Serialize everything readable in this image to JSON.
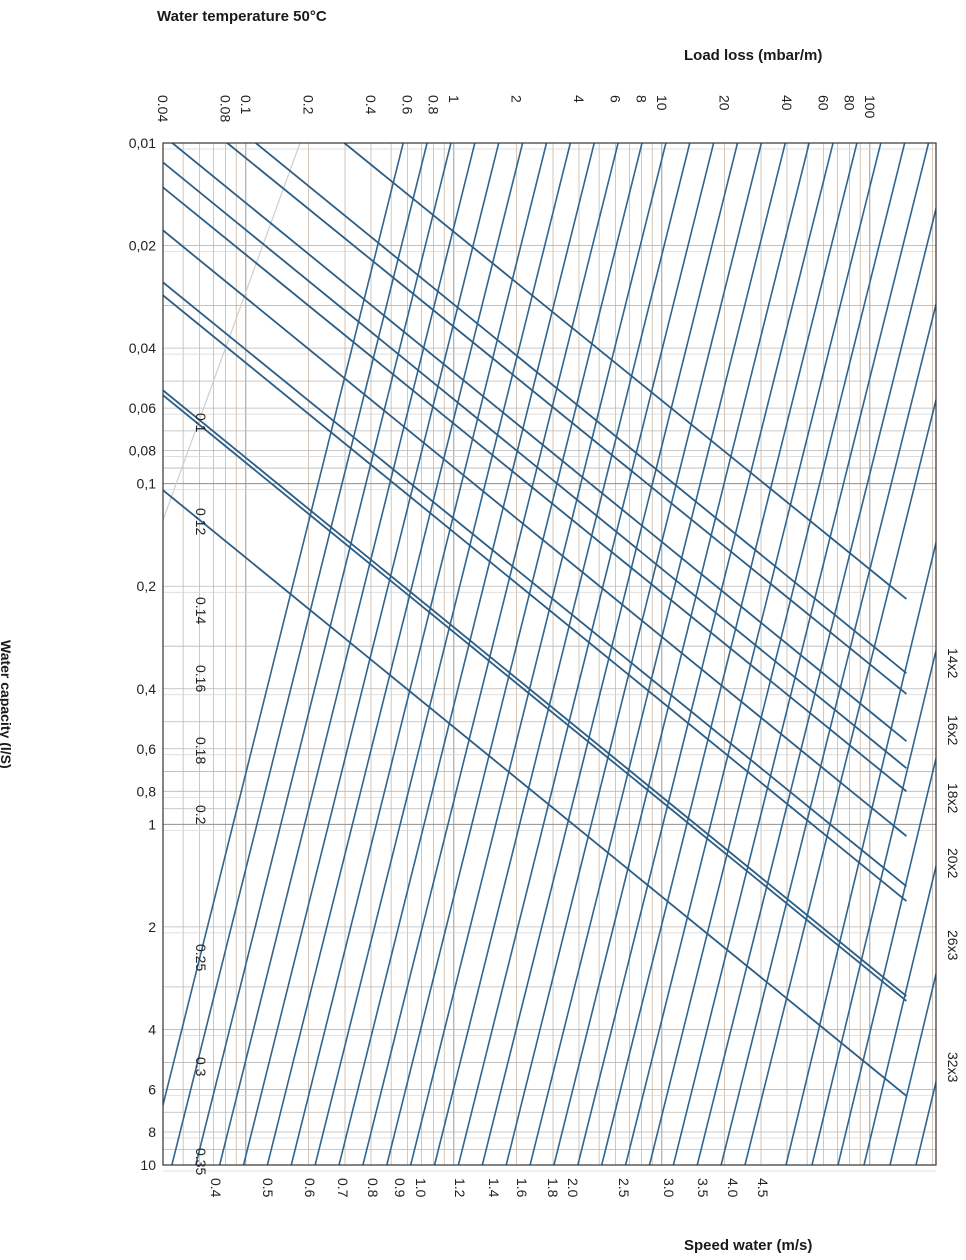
{
  "chart_data": {
    "type": "line",
    "title": "Water temperature 50°C",
    "xlabel": "Load loss (mbar/m)",
    "ylabel": "Water capacity (l/S)",
    "secondary_label": "Speed water (m/s)",
    "x_scale": "log",
    "y_scale": "log",
    "xlim": [
      0.04,
      200
    ],
    "ylim": [
      0.01,
      10
    ],
    "y_inverted": true,
    "grid": true,
    "x_ticks": [
      "0.04",
      "0.08",
      "0.1",
      "0.2",
      "0.4",
      "0.6",
      "0.8",
      "1",
      "2",
      "4",
      "6",
      "8",
      "10",
      "20",
      "40",
      "60",
      "80",
      "100"
    ],
    "y_ticks": [
      "0,01",
      "0,02",
      "0,04",
      "0,06",
      "0,08",
      "0,1",
      "0,2",
      "0,4",
      "0,6",
      "0,8",
      "1",
      "2",
      "4",
      "6",
      "8",
      "10"
    ],
    "speed_labels_bottom": [
      "0.4",
      "0.5",
      "0.6",
      "0.7",
      "0.8",
      "0.9",
      "1.0",
      "1.2",
      "1.4",
      "1.6",
      "1.8",
      "2.0",
      "2.5",
      "3.0",
      "3.5",
      "4.0",
      "4.5"
    ],
    "speed_labels_left": [
      "0.1",
      "0.12",
      "0.14",
      "0.16",
      "0.18",
      "0.2",
      "0.25",
      "0.3",
      "0.35"
    ],
    "pipe_labels": [
      "14x2",
      "16x2",
      "18x2",
      "20x2",
      "26x3",
      "32x3"
    ],
    "pipe_series": [
      {
        "name": "14x2",
        "points": [
          [
            0.04,
            0.0037
          ],
          [
            150,
            0.218
          ]
        ]
      },
      {
        "name": "16x2",
        "points": [
          [
            0.04,
            0.006
          ],
          [
            150,
            0.36
          ]
        ]
      },
      {
        "name": "18x2",
        "points": [
          [
            0.04,
            0.0095
          ],
          [
            150,
            0.57
          ]
        ]
      },
      {
        "name": "20x2",
        "points": [
          [
            0.04,
            0.0135
          ],
          [
            150,
            0.8
          ]
        ]
      },
      {
        "name": "26x3",
        "points": [
          [
            0.04,
            0.028
          ],
          [
            150,
            1.68
          ]
        ]
      },
      {
        "name": "32x3",
        "points": [
          [
            0.04,
            0.055
          ],
          [
            150,
            3.3
          ]
        ]
      }
    ],
    "speed_lines": [
      0.1,
      0.12,
      0.14,
      0.16,
      0.18,
      0.2,
      0.25,
      0.3,
      0.35,
      0.4,
      0.5,
      0.6,
      0.7,
      0.8,
      0.9,
      1.0,
      1.2,
      1.4,
      1.6,
      1.8,
      2.0,
      2.5,
      3.0,
      3.5,
      4.0,
      4.5
    ]
  }
}
